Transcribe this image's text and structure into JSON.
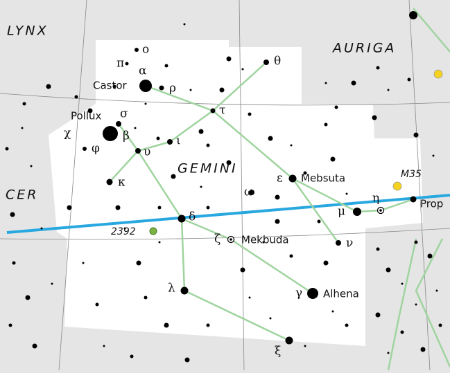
{
  "regions": [
    "LYNX",
    "AURIGA",
    "GEMINI",
    "CER"
  ],
  "star_names": [
    "Castor",
    "Pollux",
    "Mebsuta",
    "Mekbuda",
    "Alhena",
    "Prop"
  ],
  "greek": [
    "ο",
    "π",
    "α",
    "ρ",
    "θ",
    "σ",
    "τ",
    "χ",
    "β",
    "φ",
    "ι",
    "υ",
    "κ",
    "ε",
    "ω",
    "η",
    "μ",
    "δ",
    "ζ",
    "ν",
    "λ",
    "γ",
    "ξ"
  ],
  "objects": [
    "M35",
    "2392"
  ]
}
